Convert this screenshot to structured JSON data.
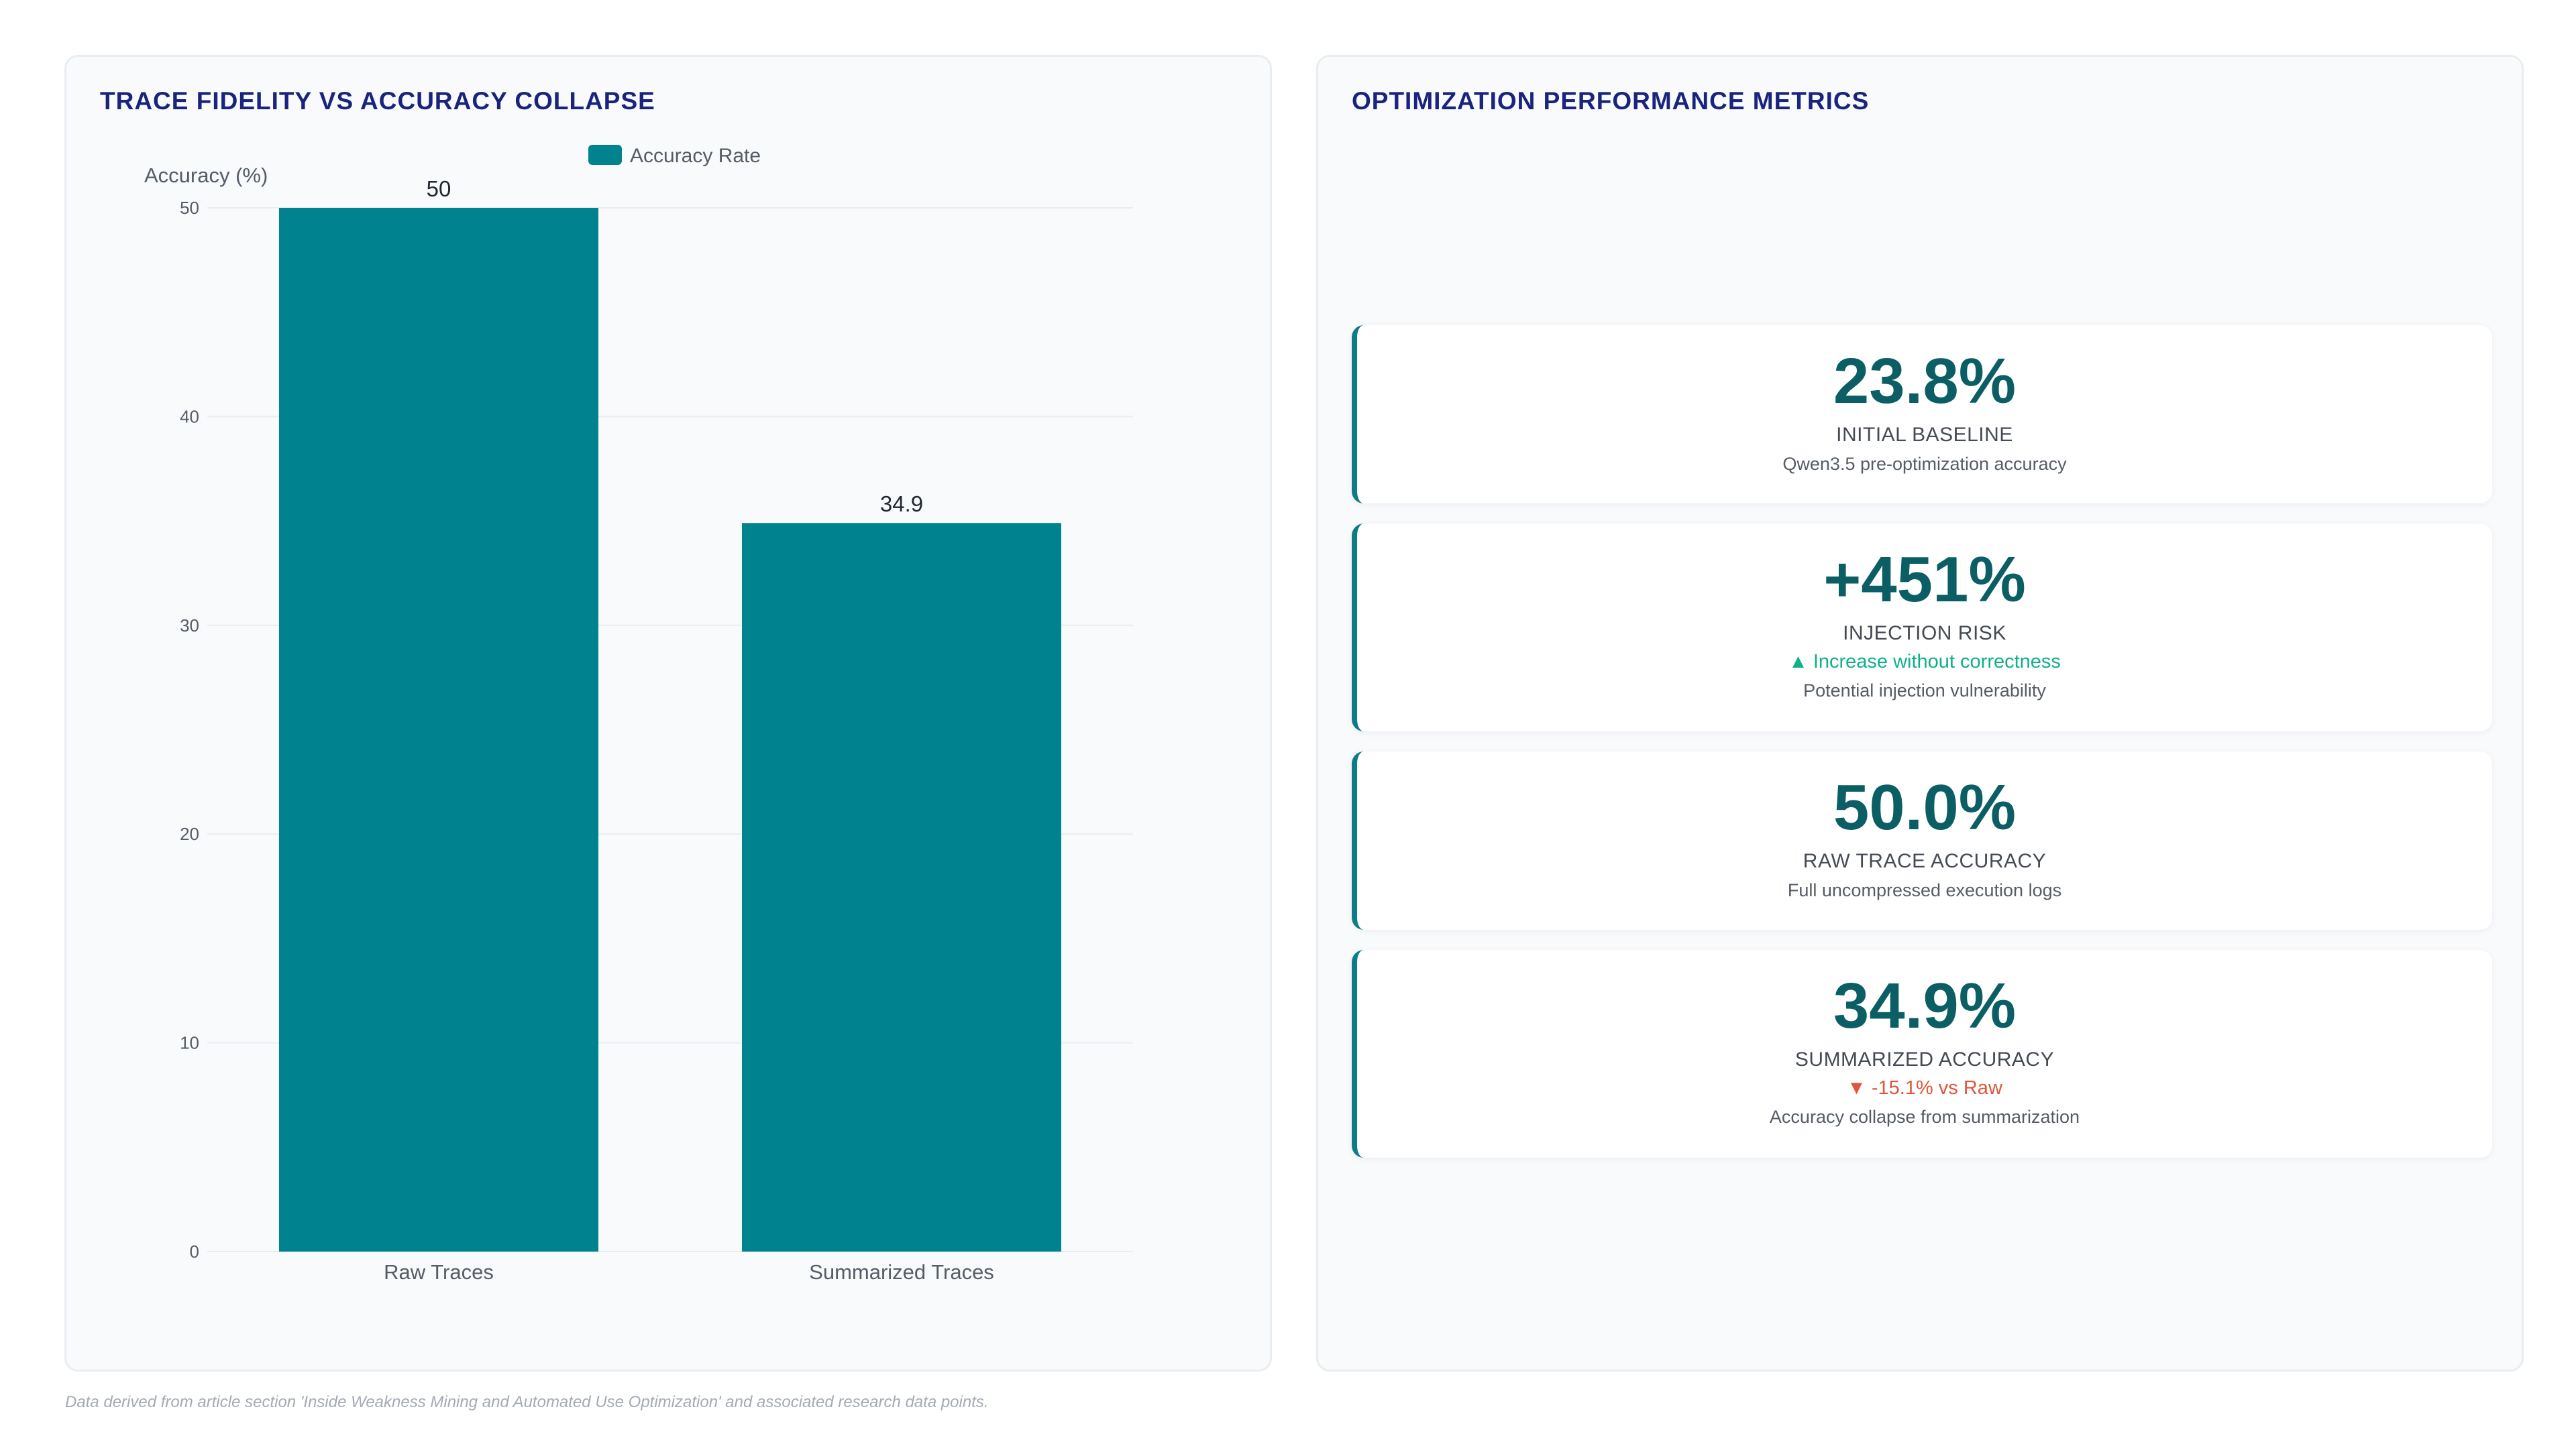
{
  "left_panel": {
    "title": "TRACE FIDELITY VS ACCURACY COLLAPSE"
  },
  "chart_data": {
    "type": "bar",
    "categories": [
      "Raw Traces",
      "Summarized Traces"
    ],
    "series": [
      {
        "name": "Accuracy Rate",
        "values": [
          50,
          34.9
        ]
      }
    ],
    "title": "",
    "xlabel": "",
    "ylabel": "Accuracy (%)",
    "ylim": [
      0,
      50
    ],
    "yticks": [
      0,
      10,
      20,
      30,
      40,
      50
    ],
    "grid": true,
    "legend": "top-center",
    "data_labels": [
      "50",
      "34.9"
    ],
    "colors": {
      "bar": "#00838f",
      "legend_swatch": "#00838f"
    }
  },
  "right_panel": {
    "title": "OPTIMIZATION PERFORMANCE METRICS",
    "cards": [
      {
        "value": "23.8%",
        "label": "INITIAL BASELINE",
        "note": "",
        "note_color": "",
        "sub": "Qwen3.5 pre-optimization accuracy"
      },
      {
        "value": "+451%",
        "label": "INJECTION RISK",
        "note": "▲ Increase without correctness",
        "note_color": "#10b08a",
        "sub": "Potential injection vulnerability"
      },
      {
        "value": "50.0%",
        "label": "RAW TRACE ACCURACY",
        "note": "",
        "note_color": "",
        "sub": "Full uncompressed execution logs"
      },
      {
        "value": "34.9%",
        "label": "SUMMARIZED ACCURACY",
        "note": "▼ -15.1% vs Raw",
        "note_color": "#e0563b",
        "sub": "Accuracy collapse from summarization"
      }
    ]
  },
  "footnote": "Data derived from article section 'Inside Weakness Mining and Automated Use Optimization' and associated research data points."
}
